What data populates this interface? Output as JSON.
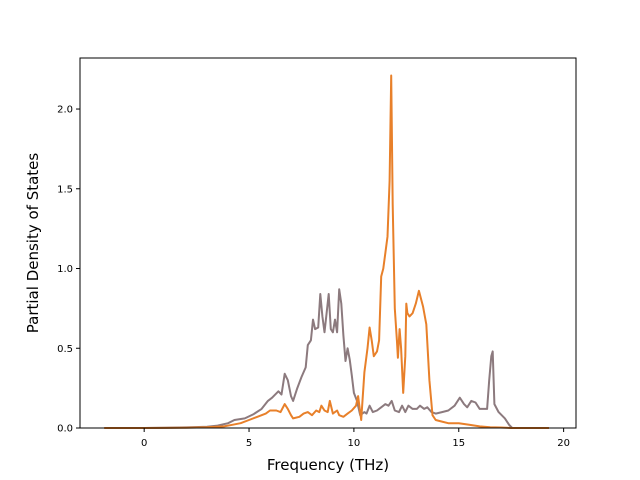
{
  "chart_data": {
    "type": "line",
    "xlabel": "Frequency (THz)",
    "ylabel": "Partial Density of States",
    "xlim": [
      -3.06,
      20.59
    ],
    "ylim": [
      0.0,
      2.32
    ],
    "xticks": [
      0,
      5,
      10,
      15,
      20
    ],
    "xtick_labels": [
      "0",
      "5",
      "10",
      "15",
      "20"
    ],
    "yticks": [
      0.0,
      0.5,
      1.0,
      1.5,
      2.0
    ],
    "ytick_labels": [
      "0.0",
      "0.5",
      "1.0",
      "1.5",
      "2.0"
    ],
    "grid": false,
    "series": [
      {
        "color": "#8c7a7e",
        "points": [
          [
            -1.9,
            0
          ],
          [
            0,
            0
          ],
          [
            1,
            0.002
          ],
          [
            2,
            0.004
          ],
          [
            3,
            0.008
          ],
          [
            3.5,
            0.015
          ],
          [
            4.0,
            0.03
          ],
          [
            4.3,
            0.05
          ],
          [
            4.8,
            0.06
          ],
          [
            5.2,
            0.085
          ],
          [
            5.6,
            0.12
          ],
          [
            5.9,
            0.17
          ],
          [
            6.1,
            0.19
          ],
          [
            6.4,
            0.23
          ],
          [
            6.55,
            0.21
          ],
          [
            6.7,
            0.34
          ],
          [
            6.85,
            0.3
          ],
          [
            7.0,
            0.2
          ],
          [
            7.1,
            0.17
          ],
          [
            7.3,
            0.25
          ],
          [
            7.5,
            0.32
          ],
          [
            7.7,
            0.38
          ],
          [
            7.8,
            0.52
          ],
          [
            7.95,
            0.55
          ],
          [
            8.05,
            0.68
          ],
          [
            8.15,
            0.62
          ],
          [
            8.3,
            0.63
          ],
          [
            8.4,
            0.84
          ],
          [
            8.5,
            0.7
          ],
          [
            8.6,
            0.6
          ],
          [
            8.7,
            0.72
          ],
          [
            8.8,
            0.84
          ],
          [
            8.9,
            0.62
          ],
          [
            9.0,
            0.6
          ],
          [
            9.1,
            0.68
          ],
          [
            9.2,
            0.6
          ],
          [
            9.3,
            0.87
          ],
          [
            9.4,
            0.78
          ],
          [
            9.5,
            0.58
          ],
          [
            9.6,
            0.42
          ],
          [
            9.7,
            0.5
          ],
          [
            9.8,
            0.43
          ],
          [
            9.9,
            0.33
          ],
          [
            10.0,
            0.22
          ],
          [
            10.15,
            0.17
          ],
          [
            10.3,
            0.08
          ],
          [
            10.5,
            0.1
          ],
          [
            10.6,
            0.09
          ],
          [
            10.75,
            0.14
          ],
          [
            10.9,
            0.1
          ],
          [
            11.1,
            0.11
          ],
          [
            11.3,
            0.13
          ],
          [
            11.5,
            0.15
          ],
          [
            11.65,
            0.14
          ],
          [
            11.8,
            0.17
          ],
          [
            11.95,
            0.11
          ],
          [
            12.15,
            0.1
          ],
          [
            12.3,
            0.14
          ],
          [
            12.45,
            0.1
          ],
          [
            12.6,
            0.14
          ],
          [
            12.8,
            0.12
          ],
          [
            13.0,
            0.12
          ],
          [
            13.15,
            0.14
          ],
          [
            13.35,
            0.12
          ],
          [
            13.5,
            0.13
          ],
          [
            13.7,
            0.1
          ],
          [
            13.9,
            0.09
          ],
          [
            14.2,
            0.1
          ],
          [
            14.5,
            0.11
          ],
          [
            14.8,
            0.14
          ],
          [
            15.05,
            0.19
          ],
          [
            15.25,
            0.15
          ],
          [
            15.4,
            0.13
          ],
          [
            15.6,
            0.17
          ],
          [
            15.8,
            0.16
          ],
          [
            16.0,
            0.12
          ],
          [
            16.2,
            0.12
          ],
          [
            16.35,
            0.12
          ],
          [
            16.45,
            0.3
          ],
          [
            16.55,
            0.45
          ],
          [
            16.62,
            0.48
          ],
          [
            16.7,
            0.15
          ],
          [
            16.9,
            0.1
          ],
          [
            17.2,
            0.06
          ],
          [
            17.4,
            0.02
          ],
          [
            17.55,
            0.0
          ],
          [
            19.3,
            0.0
          ]
        ]
      },
      {
        "color": "#e8802a",
        "points": [
          [
            -1.9,
            0
          ],
          [
            0,
            0
          ],
          [
            2,
            0.002
          ],
          [
            3,
            0.005
          ],
          [
            3.8,
            0.01
          ],
          [
            4.2,
            0.02
          ],
          [
            4.6,
            0.03
          ],
          [
            5.0,
            0.05
          ],
          [
            5.4,
            0.07
          ],
          [
            5.8,
            0.09
          ],
          [
            6.0,
            0.11
          ],
          [
            6.3,
            0.11
          ],
          [
            6.5,
            0.1
          ],
          [
            6.7,
            0.15
          ],
          [
            6.85,
            0.12
          ],
          [
            7.0,
            0.08
          ],
          [
            7.1,
            0.06
          ],
          [
            7.4,
            0.07
          ],
          [
            7.6,
            0.09
          ],
          [
            7.8,
            0.1
          ],
          [
            8.0,
            0.08
          ],
          [
            8.2,
            0.11
          ],
          [
            8.35,
            0.1
          ],
          [
            8.45,
            0.14
          ],
          [
            8.6,
            0.11
          ],
          [
            8.75,
            0.1
          ],
          [
            8.85,
            0.17
          ],
          [
            9.0,
            0.09
          ],
          [
            9.2,
            0.11
          ],
          [
            9.3,
            0.08
          ],
          [
            9.5,
            0.07
          ],
          [
            9.7,
            0.09
          ],
          [
            9.9,
            0.11
          ],
          [
            10.1,
            0.14
          ],
          [
            10.2,
            0.2
          ],
          [
            10.35,
            0.05
          ],
          [
            10.5,
            0.35
          ],
          [
            10.65,
            0.5
          ],
          [
            10.75,
            0.63
          ],
          [
            10.85,
            0.55
          ],
          [
            10.95,
            0.45
          ],
          [
            11.1,
            0.48
          ],
          [
            11.2,
            0.55
          ],
          [
            11.3,
            0.95
          ],
          [
            11.4,
            1.0
          ],
          [
            11.5,
            1.1
          ],
          [
            11.6,
            1.2
          ],
          [
            11.7,
            1.55
          ],
          [
            11.78,
            2.21
          ],
          [
            11.85,
            1.4
          ],
          [
            11.95,
            0.75
          ],
          [
            12.05,
            0.55
          ],
          [
            12.1,
            0.44
          ],
          [
            12.18,
            0.62
          ],
          [
            12.25,
            0.5
          ],
          [
            12.35,
            0.22
          ],
          [
            12.45,
            0.45
          ],
          [
            12.5,
            0.78
          ],
          [
            12.55,
            0.72
          ],
          [
            12.65,
            0.7
          ],
          [
            12.8,
            0.72
          ],
          [
            12.95,
            0.78
          ],
          [
            13.1,
            0.86
          ],
          [
            13.3,
            0.76
          ],
          [
            13.45,
            0.65
          ],
          [
            13.6,
            0.3
          ],
          [
            13.75,
            0.08
          ],
          [
            13.9,
            0.05
          ],
          [
            14.2,
            0.04
          ],
          [
            14.5,
            0.03
          ],
          [
            15.0,
            0.03
          ],
          [
            15.5,
            0.02
          ],
          [
            16.0,
            0.01
          ],
          [
            16.5,
            0.005
          ],
          [
            17.0,
            0.003
          ],
          [
            17.5,
            0.0
          ],
          [
            19.3,
            0.0
          ]
        ]
      }
    ]
  }
}
